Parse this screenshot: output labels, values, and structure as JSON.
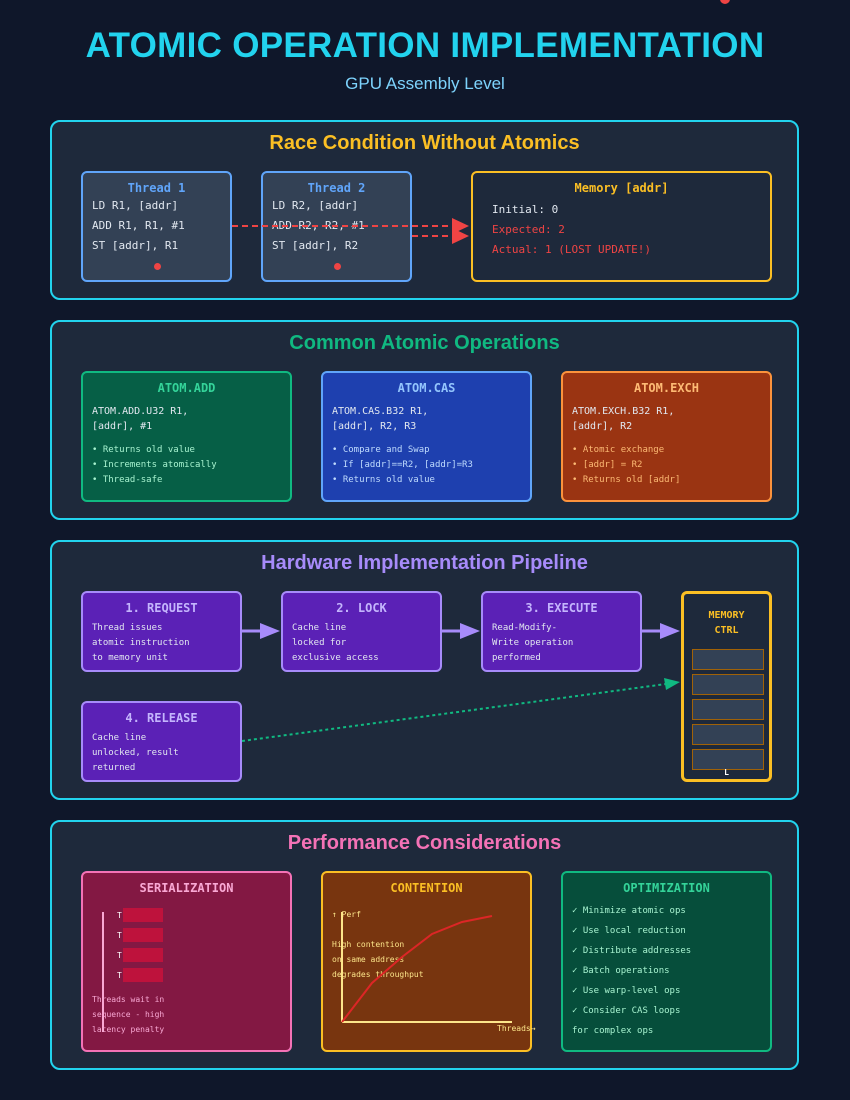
{
  "title": "ATOMIC OPERATION IMPLEMENTATION",
  "subtitle": "GPU Assembly Level",
  "race": {
    "title": "Race Condition Without Atomics",
    "thread1": {
      "title": "Thread 1",
      "lines": [
        "LD R1, [addr]",
        "ADD R1, R1, #1",
        "ST [addr], R1"
      ]
    },
    "thread2": {
      "title": "Thread 2",
      "lines": [
        "LD R2, [addr]",
        "ADD R2, R2, #1",
        "ST [addr], R2"
      ]
    },
    "memory": {
      "title": "Memory [addr]",
      "initial": "Initial: 0",
      "expected": "Expected: 2",
      "actual": "Actual: 1 (LOST UPDATE!)"
    }
  },
  "ops": {
    "title": "Common Atomic Operations",
    "add": {
      "title": "ATOM.ADD",
      "code": [
        "ATOM.ADD.U32 R1,",
        "[addr], #1"
      ],
      "bullets": [
        "• Returns old value",
        "• Increments atomically",
        "• Thread-safe"
      ]
    },
    "cas": {
      "title": "ATOM.CAS",
      "code": [
        "ATOM.CAS.B32 R1,",
        "[addr], R2, R3"
      ],
      "bullets": [
        "• Compare and Swap",
        "• If [addr]==R2, [addr]=R3",
        "• Returns old value"
      ]
    },
    "exch": {
      "title": "ATOM.EXCH",
      "code": [
        "ATOM.EXCH.B32 R1,",
        "[addr], R2"
      ],
      "bullets": [
        "• Atomic exchange",
        "• [addr] = R2",
        "• Returns old [addr]"
      ]
    }
  },
  "pipeline": {
    "title": "Hardware Implementation Pipeline",
    "request": {
      "title": "1. REQUEST",
      "lines": [
        "Thread issues",
        "atomic instruction",
        "to memory unit"
      ]
    },
    "lock": {
      "title": "2. LOCK",
      "lines": [
        "Cache line",
        "locked for",
        "exclusive access"
      ]
    },
    "execute": {
      "title": "3. EXECUTE",
      "lines": [
        "Read-Modify-",
        "Write operation",
        "performed"
      ]
    },
    "release": {
      "title": "4. RELEASE",
      "lines": [
        "Cache line",
        "unlocked, result",
        "returned"
      ]
    },
    "memory_ctrl": {
      "title_line1": "MEMORY",
      "title_line2": "CTRL",
      "bottom_label": "L"
    }
  },
  "perf": {
    "title": "Performance Considerations",
    "serialization": {
      "title": "SERIALIZATION",
      "thread_labels": [
        "T",
        "T",
        "T",
        "T"
      ],
      "lines": [
        "Threads wait in",
        "sequence - high",
        "latency penalty"
      ]
    },
    "contention": {
      "title": "CONTENTION",
      "y_label": "↑ Perf",
      "lines": [
        "High contention",
        "on same address",
        "degrades throughput"
      ],
      "x_label": "Threads→"
    },
    "optimization": {
      "title": "OPTIMIZATION",
      "lines": [
        "✓ Minimize atomic ops",
        "✓ Use local reduction",
        "✓ Distribute addresses",
        "✓ Batch operations",
        "✓ Use warp-level ops",
        "✓ Consider CAS loops",
        "for complex ops"
      ]
    }
  },
  "colors": {
    "accent": "#22d3ee",
    "race": "#fbbf24",
    "ops": "#10b981",
    "pipeline": "#a78bfa",
    "perf": "#f472b6",
    "danger": "#ef4444"
  }
}
